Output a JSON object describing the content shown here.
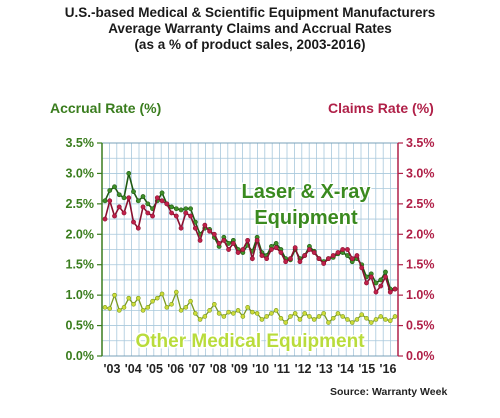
{
  "chart_data": {
    "type": "line",
    "title_lines": [
      "U.S.-based Medical & Scientific Equipment Manufacturers",
      "Average Warranty Claims and Accrual Rates",
      "(as a % of product sales, 2003-2016)"
    ],
    "left_axis_title": "Accrual Rate (%)",
    "right_axis_title": "Claims Rate (%)",
    "left_ticks": [
      "3.5%",
      "3.0%",
      "2.5%",
      "2.0%",
      "1.5%",
      "1.0%",
      "0.5%",
      "0.0%"
    ],
    "right_ticks": [
      "3.5%",
      "3.0%",
      "2.5%",
      "2.0%",
      "1.5%",
      "1.0%",
      "0.5%",
      "0.0%"
    ],
    "x_labels": [
      "'03",
      "'04",
      "'05",
      "'06",
      "'07",
      "'08",
      "'09",
      "'10",
      "'11",
      "'12",
      "'13",
      "'14",
      "'15",
      "'16"
    ],
    "ylim": [
      0,
      3.5
    ],
    "grid": true,
    "annotations": [
      "Laser & X-ray",
      "Equipment",
      "Other Medical Equipment"
    ],
    "source": "Source: Warranty Week",
    "colors": {
      "accrual": "#2f6b1c",
      "claims": "#c0204a",
      "other": "#cddc39",
      "laser_text": "#3a8a1f",
      "other_text": "#b9dc3c",
      "grid": "#a8c8dc"
    },
    "series": [
      {
        "name": "laser-accrual",
        "values": [
          2.55,
          2.72,
          2.78,
          2.65,
          2.6,
          3.0,
          2.7,
          2.55,
          2.62,
          2.5,
          2.42,
          2.55,
          2.68,
          2.5,
          2.45,
          2.42,
          2.4,
          2.42,
          2.42,
          2.2,
          2.0,
          2.1,
          2.08,
          1.95,
          1.8,
          1.95,
          1.85,
          1.9,
          1.75,
          1.7,
          1.82,
          1.72,
          1.95,
          1.7,
          1.65,
          1.8,
          1.85,
          1.75,
          1.6,
          1.58,
          1.75,
          1.6,
          1.65,
          1.8,
          1.72,
          1.6,
          1.55,
          1.6,
          1.62,
          1.68,
          1.7,
          1.65,
          1.55,
          1.6,
          1.5,
          1.3,
          1.35,
          1.2,
          1.25,
          1.38,
          1.1,
          1.1
        ]
      },
      {
        "name": "laser-claims",
        "values": [
          2.25,
          2.55,
          2.3,
          2.45,
          2.35,
          2.6,
          2.2,
          2.1,
          2.45,
          2.35,
          2.3,
          2.6,
          2.55,
          2.5,
          2.35,
          2.3,
          2.1,
          2.35,
          2.3,
          2.1,
          1.9,
          2.15,
          2.05,
          2.0,
          1.85,
          1.9,
          1.75,
          1.85,
          1.7,
          1.75,
          1.9,
          1.6,
          1.9,
          1.65,
          1.6,
          1.75,
          1.78,
          1.7,
          1.55,
          1.6,
          1.78,
          1.55,
          1.65,
          1.75,
          1.7,
          1.6,
          1.52,
          1.6,
          1.65,
          1.7,
          1.75,
          1.75,
          1.6,
          1.65,
          1.45,
          1.2,
          1.3,
          1.05,
          1.15,
          1.3,
          1.05,
          1.1
        ]
      },
      {
        "name": "other-medical",
        "values": [
          0.8,
          0.78,
          1.0,
          0.75,
          0.8,
          0.95,
          0.85,
          0.95,
          0.75,
          0.8,
          0.9,
          0.95,
          1.02,
          0.8,
          0.85,
          1.05,
          0.75,
          0.8,
          0.9,
          0.7,
          0.6,
          0.65,
          0.75,
          0.85,
          0.7,
          0.65,
          0.72,
          0.7,
          0.75,
          0.65,
          0.8,
          0.72,
          0.7,
          0.6,
          0.65,
          0.7,
          0.75,
          0.62,
          0.55,
          0.65,
          0.7,
          0.6,
          0.7,
          0.65,
          0.6,
          0.65,
          0.7,
          0.55,
          0.62,
          0.7,
          0.65,
          0.6,
          0.55,
          0.6,
          0.68,
          0.62,
          0.55,
          0.6,
          0.65,
          0.6,
          0.58,
          0.65
        ]
      }
    ]
  }
}
